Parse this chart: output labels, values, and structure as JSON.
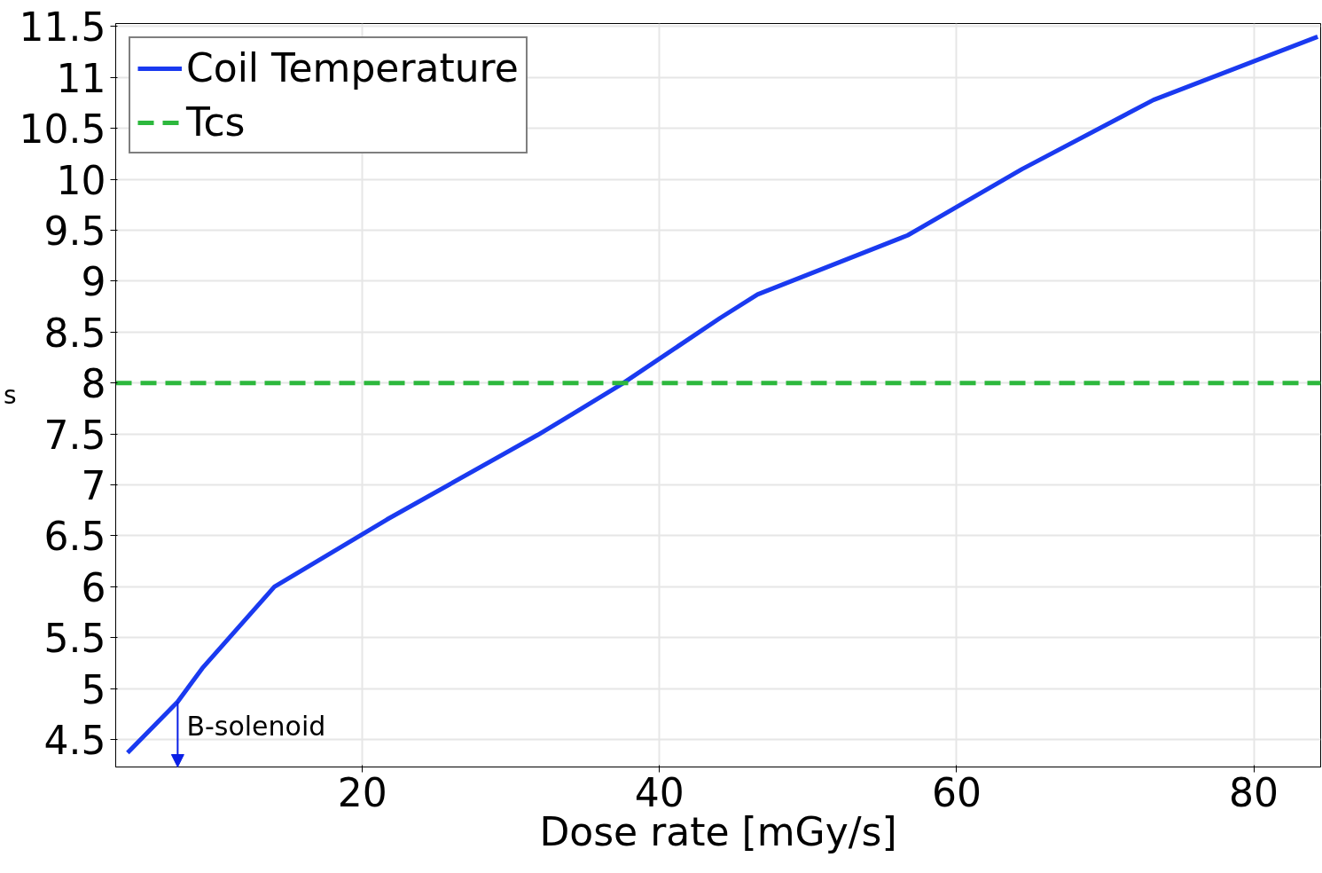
{
  "chart_data": {
    "type": "line",
    "xlabel": "Dose rate [mGy/s]",
    "ylabel": "s",
    "xlim": [
      3.4,
      84.5
    ],
    "ylim": [
      4.23,
      11.53
    ],
    "xticks": [
      20,
      40,
      60,
      80
    ],
    "yticks": [
      4.5,
      5,
      5.5,
      6,
      6.5,
      7,
      7.5,
      8,
      8.5,
      9,
      9.5,
      10,
      10.5,
      11,
      11.5
    ],
    "grid": true,
    "legend": "top left",
    "line_style": "solid",
    "marker": "none",
    "series": [
      {
        "name": "Coil Temperature",
        "color": "#1a3af0",
        "x": [
          4.2,
          7.57,
          9.23,
          14.08,
          21.66,
          31.8,
          34.2,
          37.46,
          44.1,
          46.6,
          56.7,
          64.4,
          73.25,
          84.3
        ],
        "values": [
          4.37,
          4.87,
          5.2,
          6.0,
          6.66,
          7.49,
          7.7,
          7.99,
          8.64,
          8.87,
          9.45,
          10.1,
          10.78,
          11.4
        ]
      }
    ],
    "ref_lines": [
      {
        "axis": "y",
        "value": 8,
        "label": "Tcs",
        "color": "#2db83d",
        "line_style": "dashed"
      }
    ],
    "annotations": [
      {
        "text": "B-solenoid",
        "x": 7.57,
        "y": 4.87
      }
    ]
  }
}
